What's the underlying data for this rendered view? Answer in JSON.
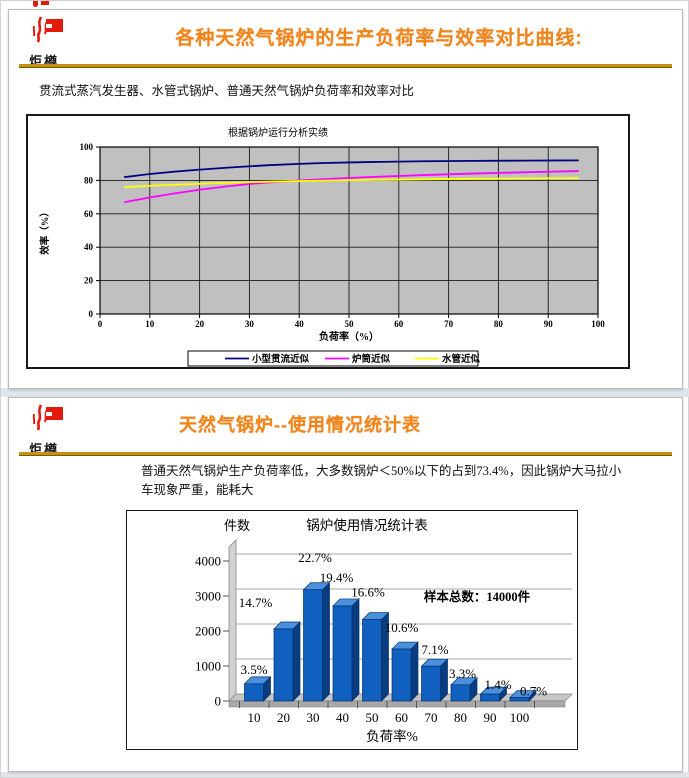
{
  "slide1": {
    "logo_text": "炬樽",
    "title": "各种天然气锅炉的生产负荷率与效率对比曲线:",
    "subtitle": "贯流式蒸汽发生器、水管式锅炉、普通天然气锅炉负荷率和效率对比"
  },
  "slide2": {
    "logo_text": "炬樽",
    "title": "天然气锅炉--使用情况统计表",
    "body": "普通天然气锅炉生产负荷率低，大多数锅炉＜50%以下的占到73.4%，因此锅炉大马拉小车现象严重，能耗大"
  },
  "colors": {
    "title_orange": "#F08519",
    "gold_rule": "#C49110",
    "logo_red": "#E31B0C",
    "annotation_red": "#E82828",
    "plot_bg_gray": "#C0C0C0",
    "bar_blue": "#1060C0",
    "bar_side_blue": "#0A3C80",
    "bar_top_blue": "#4A90DD"
  },
  "chart_data": [
    {
      "type": "line",
      "title": "根据锅炉运行分析实绩",
      "xlabel": "负荷率（%）",
      "ylabel": "效率（%）",
      "xlim": [
        0,
        100
      ],
      "ylim": [
        0,
        100
      ],
      "xticks": [
        0,
        10,
        20,
        30,
        40,
        50,
        60,
        70,
        80,
        90,
        100
      ],
      "yticks": [
        0,
        20,
        40,
        60,
        80,
        100
      ],
      "grid": true,
      "plot_bg": "#C0C0C0",
      "legend_position": "bottom",
      "x": [
        5,
        10,
        20,
        30,
        40,
        50,
        60,
        70,
        80,
        90,
        96
      ],
      "series": [
        {
          "name": "小型贯流近似",
          "color": "#000080",
          "values": [
            82,
            84,
            86.5,
            88.5,
            90,
            90.8,
            91.3,
            91.6,
            91.8,
            91.9,
            92
          ]
        },
        {
          "name": "炉筒近似",
          "color": "#FF00FF",
          "values": [
            67,
            70,
            74.5,
            78,
            80,
            81.5,
            82.7,
            83.7,
            84.5,
            85.2,
            85.6
          ]
        },
        {
          "name": "水管近似",
          "color": "#FFFF00",
          "values": [
            76,
            76.8,
            78,
            79,
            79.6,
            80.1,
            80.5,
            80.8,
            81.1,
            81.3,
            81.4
          ]
        }
      ]
    },
    {
      "type": "bar",
      "title": "锅炉使用情况统计表",
      "ylabel": "件数",
      "xlabel": "负荷率%",
      "categories": [
        10,
        20,
        30,
        40,
        50,
        60,
        70,
        80,
        90,
        100
      ],
      "values": [
        490,
        2058,
        3178,
        2716,
        2324,
        1484,
        994,
        462,
        196,
        98
      ],
      "labels": [
        "3.5%",
        "14.7%",
        "22.7%",
        "19.4%",
        "16.6%",
        "10.6%",
        "7.1%",
        "3.3%",
        "1.4%",
        "0.7%"
      ],
      "annotation": "样本总数：14000件",
      "annotation_color": "#E82828",
      "yticks": [
        0,
        1000,
        2000,
        3000,
        4000
      ],
      "ylim": [
        0,
        4000
      ],
      "grid": true,
      "bar_color": "#1060C0",
      "legend_position": "none"
    }
  ]
}
